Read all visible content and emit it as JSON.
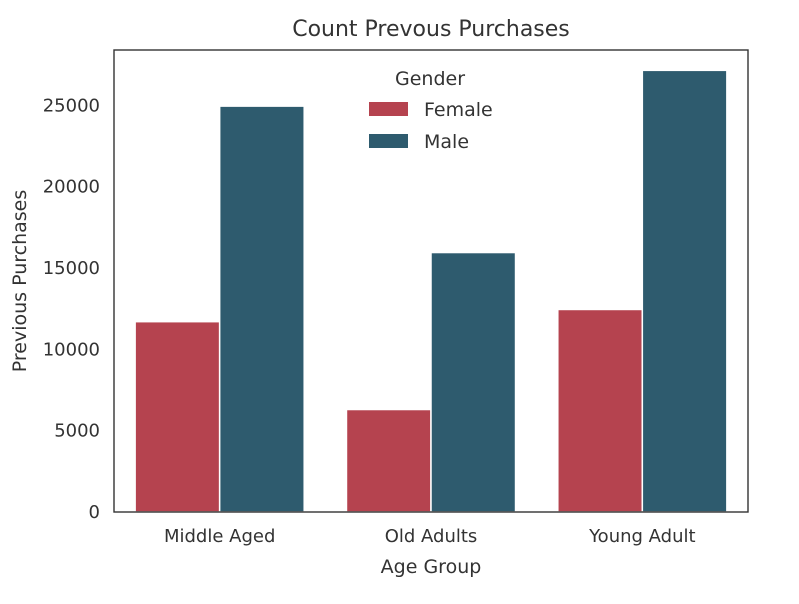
{
  "chart_data": {
    "type": "bar",
    "title": "Count Prevous Purchases",
    "xlabel": "Age Group",
    "ylabel": "Previous Purchases",
    "categories": [
      "Middle Aged",
      "Old Adults",
      "Young Adult"
    ],
    "series": [
      {
        "name": "Female",
        "color": "#b5434f",
        "values": [
          11700,
          6300,
          12450
        ]
      },
      {
        "name": "Male",
        "color": "#2e5b6e",
        "values": [
          24950,
          15950,
          27150
        ]
      }
    ],
    "ylim": [
      0,
      28400
    ],
    "yticks": [
      0,
      5000,
      10000,
      15000,
      20000,
      25000
    ],
    "ytick_labels": [
      "0",
      "5000",
      "10000",
      "15000",
      "20000",
      "25000"
    ],
    "grid": false,
    "legend": {
      "title": "Gender",
      "placement": "top-center"
    }
  }
}
